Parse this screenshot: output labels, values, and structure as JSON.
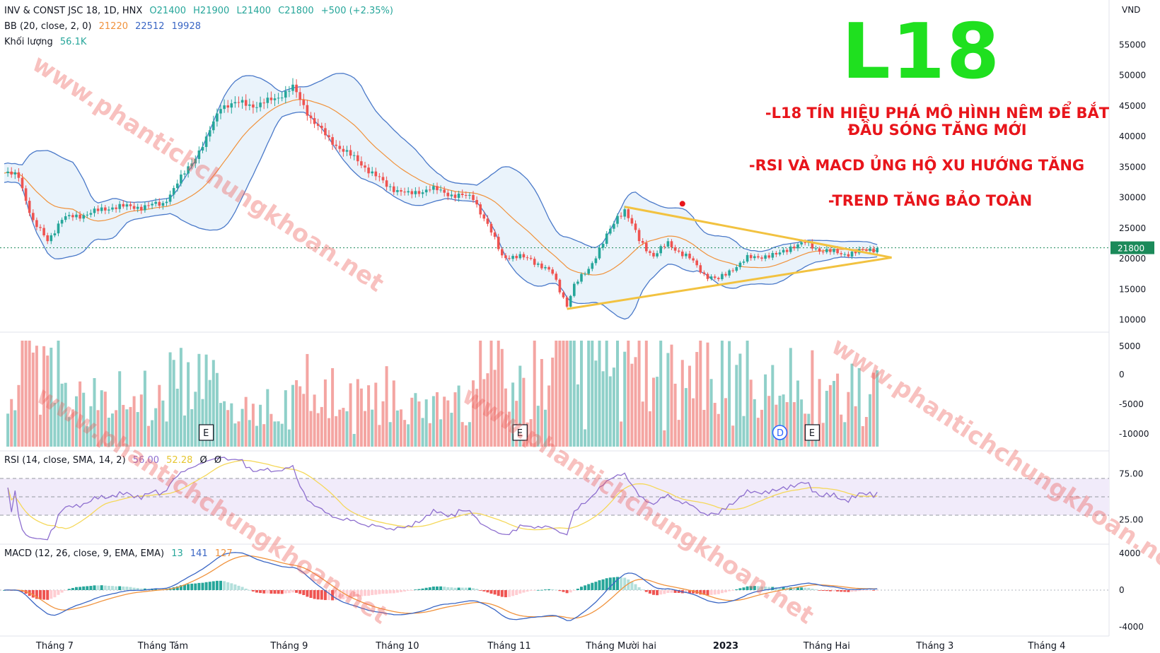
{
  "header": {
    "symbol": "INV & CONST JSC 18, 1D, HNX",
    "open": "O21400",
    "high": "H21900",
    "low": "L21400",
    "close": "C21800",
    "change": "+500 (+2.35%)"
  },
  "bb_legend": {
    "label": "BB (20, close, 2, 0)",
    "basis": "21220",
    "upper": "22512",
    "lower": "19928"
  },
  "volume_legend": {
    "label": "Khối lượng",
    "value": "56.1K"
  },
  "rsi_legend": {
    "label": "RSI (14, close, SMA, 14, 2)",
    "rsi": "56.00",
    "sma": "52.28",
    "u1": "Ø",
    "u2": "Ø"
  },
  "macd_legend": {
    "label": "MACD (12, 26, close, 9, EMA, EMA)",
    "hist": "13",
    "macd": "141",
    "signal": "127"
  },
  "overlay": {
    "title": "L18",
    "note1_line1": "-L18 TÍN HIỆU PHÁ MÔ HÌNH NÊM ĐỂ BẮT",
    "note1_line2": "ĐẦU SÓNG TĂNG MỚI",
    "note2": "-RSI VÀ MACD ỦNG HỘ XU HƯỚNG TĂNG",
    "note3": "-TREND TĂNG BẢO TOÀN",
    "watermark": "www.phantichchungkhoan.net"
  },
  "colors": {
    "up": "#26a69a",
    "down": "#ef5350",
    "vol_up": "#8fd0c9",
    "vol_down": "#f4a5a2",
    "bb_band": "#4a79c9",
    "bb_basis": "#f0923c",
    "bb_fill": "#e8f2fb",
    "rsi": "#8e6fcf",
    "rsi_sma": "#f5d85a",
    "rsi_bg": "#f1ebfa",
    "macd": "#3a66c4",
    "signal": "#f0923c",
    "wedge": "#f2c240",
    "price_tag": "#1b8a5a"
  },
  "chart_data": {
    "type": "candlestick",
    "price_axis": {
      "unit": "VND",
      "range": [
        8000,
        60000
      ],
      "ticks": [
        10000,
        15000,
        20000,
        25000,
        30000,
        35000,
        40000,
        45000,
        50000,
        55000
      ],
      "last_price": 21800,
      "last_price_label": "21800"
    },
    "volume_axis_ticks": [
      "5000",
      "0",
      "-5000",
      "-10000"
    ],
    "rsi_axis": {
      "range": [
        0,
        100
      ],
      "ticks": [
        "75.00",
        "25.00"
      ],
      "bands": [
        70,
        30
      ]
    },
    "macd_axis": {
      "range": [
        -5000,
        5000
      ],
      "ticks": [
        "4000",
        "0",
        "-4000"
      ]
    },
    "x_axis": {
      "labels": [
        "Tháng 7",
        "Tháng Tám",
        "Tháng 9",
        "Tháng 10",
        "Tháng 11",
        "Tháng Mười hai",
        "2023",
        "Tháng Hai",
        "Tháng 3",
        "Tháng 4"
      ],
      "label_day_index": [
        14,
        44,
        79,
        109,
        140,
        171,
        200,
        228,
        258,
        289
      ]
    },
    "event_markers": [
      {
        "label": "E",
        "day": 56
      },
      {
        "label": "E",
        "day": 143
      },
      {
        "label": "D",
        "day": 215
      },
      {
        "label": "E",
        "day": 224
      }
    ],
    "close_anchors": [
      [
        0,
        34000
      ],
      [
        4,
        33500
      ],
      [
        8,
        26000
      ],
      [
        12,
        23000
      ],
      [
        16,
        26500
      ],
      [
        20,
        27000
      ],
      [
        24,
        27500
      ],
      [
        30,
        28500
      ],
      [
        38,
        28500
      ],
      [
        44,
        29000
      ],
      [
        50,
        34000
      ],
      [
        56,
        39500
      ],
      [
        60,
        45000
      ],
      [
        66,
        45500
      ],
      [
        70,
        45000
      ],
      [
        76,
        46500
      ],
      [
        80,
        48000
      ],
      [
        85,
        43000
      ],
      [
        90,
        39500
      ],
      [
        98,
        36000
      ],
      [
        106,
        32000
      ],
      [
        112,
        30500
      ],
      [
        118,
        31500
      ],
      [
        124,
        30500
      ],
      [
        130,
        30000
      ],
      [
        134,
        25500
      ],
      [
        138,
        20500
      ],
      [
        146,
        20000
      ],
      [
        152,
        17500
      ],
      [
        156,
        12500
      ],
      [
        158,
        15500
      ],
      [
        162,
        18500
      ],
      [
        166,
        22500
      ],
      [
        170,
        27000
      ],
      [
        172,
        28000
      ],
      [
        176,
        23000
      ],
      [
        180,
        20500
      ],
      [
        184,
        22500
      ],
      [
        190,
        20000
      ],
      [
        194,
        17500
      ],
      [
        198,
        16500
      ],
      [
        202,
        18500
      ],
      [
        206,
        20000
      ],
      [
        210,
        20500
      ],
      [
        214,
        20500
      ],
      [
        218,
        22000
      ],
      [
        222,
        22500
      ],
      [
        226,
        21500
      ],
      [
        232,
        20800
      ],
      [
        238,
        21200
      ],
      [
        242,
        21800
      ]
    ],
    "wedge": {
      "upper": [
        [
          172,
          28500
        ],
        [
          246,
          20200
        ]
      ],
      "lower": [
        [
          156,
          11800
        ],
        [
          246,
          20200
        ]
      ]
    },
    "note_marker": {
      "day": 188,
      "price": 29000
    }
  }
}
